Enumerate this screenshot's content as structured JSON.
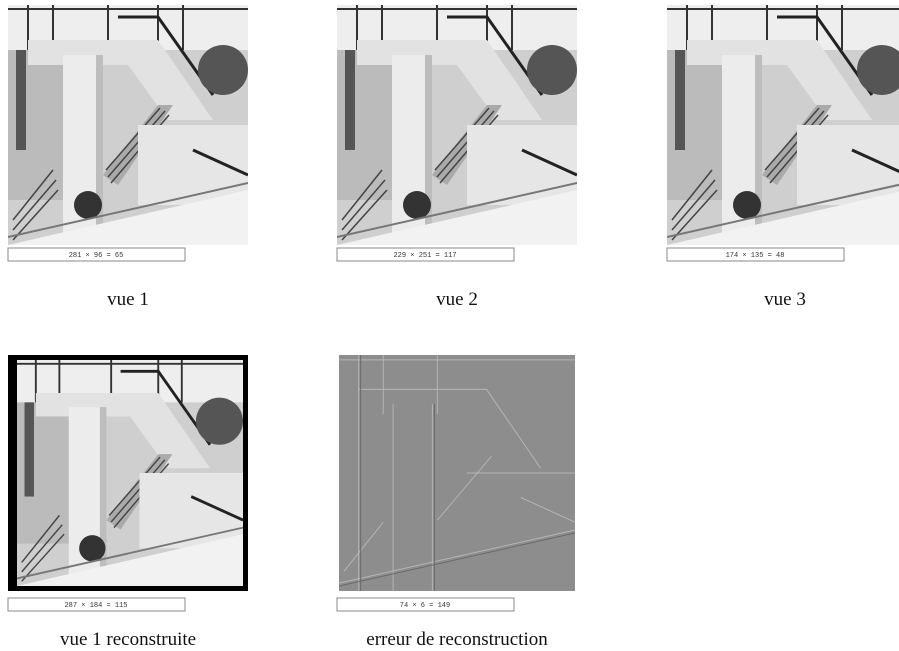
{
  "panels": [
    {
      "caption": "vue 1",
      "status": "281 × 96 = 65"
    },
    {
      "caption": "vue 2",
      "status": "229 × 251 = 117"
    },
    {
      "caption": "vue 3",
      "status": "174 × 135 = 48"
    },
    {
      "caption": "vue 1 reconstruite",
      "status": "287 × 184 = 115"
    },
    {
      "caption": "erreur de reconstruction",
      "status": "74 × 6 = 149"
    }
  ]
}
